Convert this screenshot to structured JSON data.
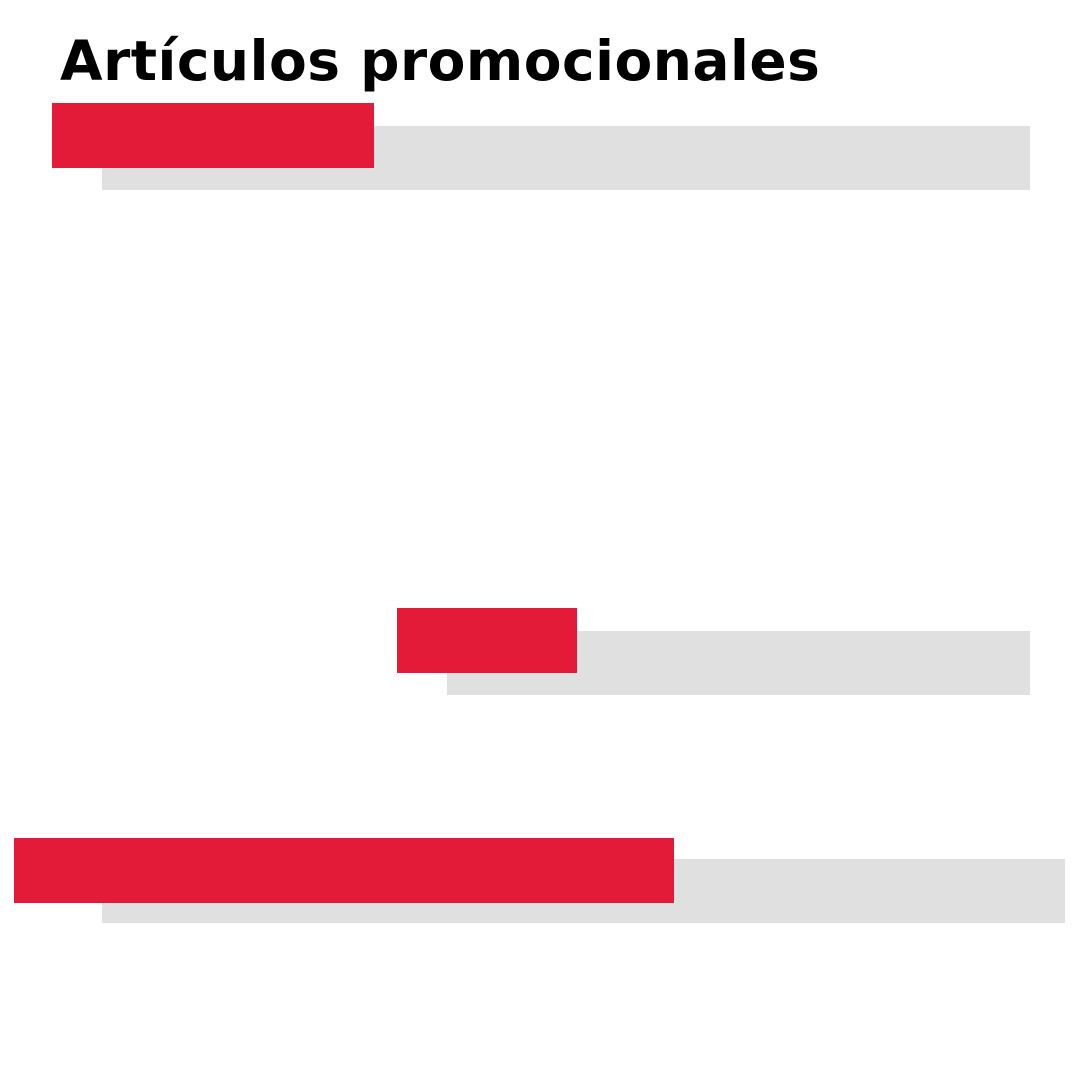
{
  "page": {
    "title": "Artículos promocionales"
  },
  "colors": {
    "background": "#ffffff",
    "title": "#000000",
    "accent": "#e31a38",
    "bar_gray": "#e0e0e0"
  }
}
